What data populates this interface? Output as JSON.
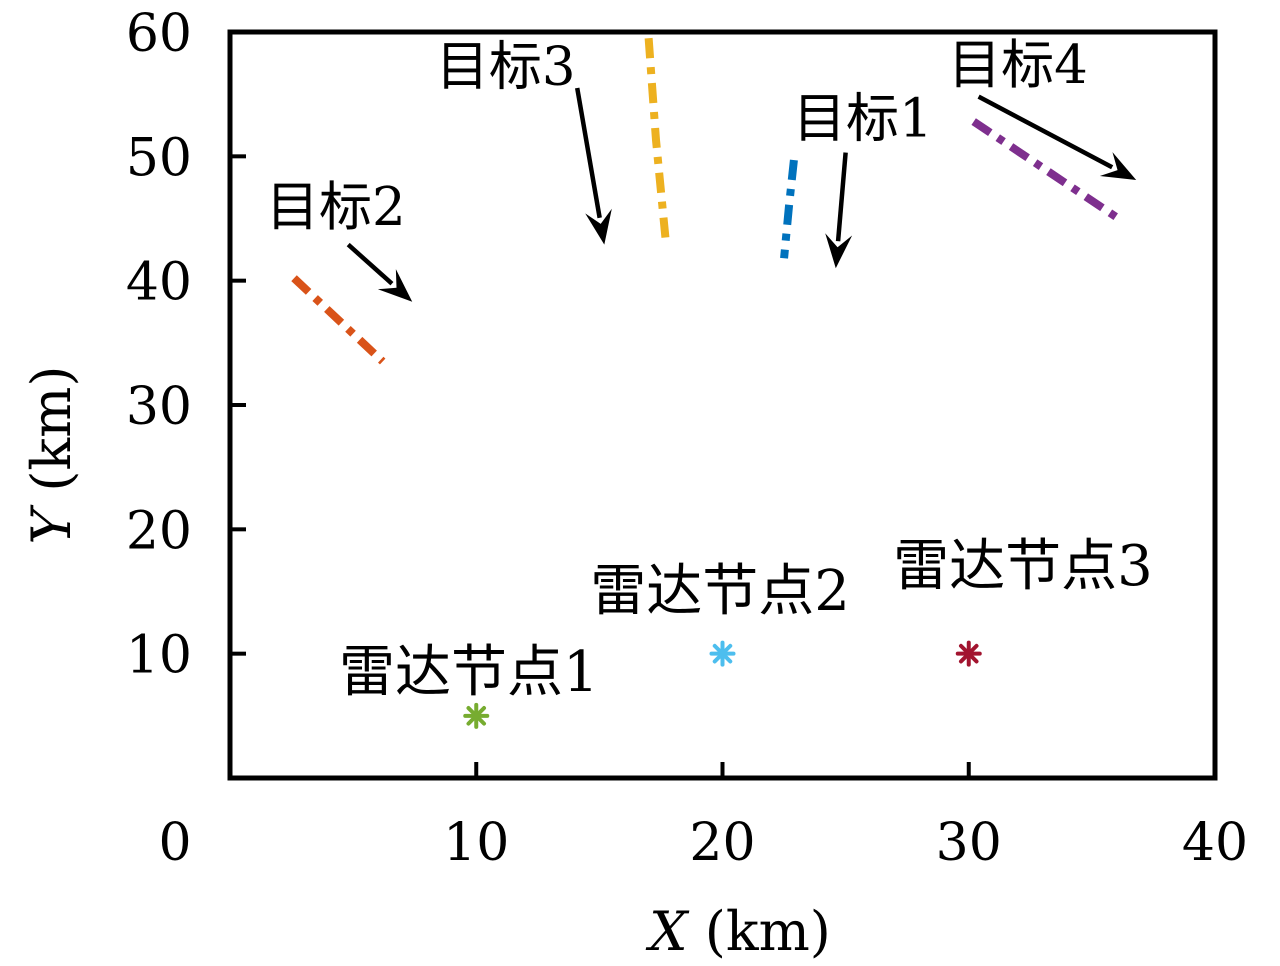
{
  "figure": {
    "background": "#ffffff",
    "axis_color": "#000000",
    "annotation_color": "#000000"
  },
  "chart_data": {
    "type": "scatter",
    "title": "",
    "xlabel_var": "X",
    "xlabel_unit": " (km)",
    "ylabel_var": "Y",
    "ylabel_unit": " (km)",
    "xlim": [
      0,
      40
    ],
    "ylim": [
      0,
      60
    ],
    "xticks": {
      "values": [
        0,
        10,
        20,
        30,
        40
      ],
      "labels": [
        "0",
        "10",
        "20",
        "30",
        "40"
      ]
    },
    "yticks": {
      "values": [
        10,
        20,
        30,
        40,
        50,
        60
      ],
      "labels": [
        "10",
        "20",
        "30",
        "40",
        "50",
        "60"
      ]
    },
    "grid": false,
    "legend": "none",
    "line_style": "dash-dot",
    "targets": [
      {
        "name": "target-1",
        "color": "#0072BD",
        "trajectory": [
          [
            22.9,
            49.7
          ],
          [
            22.7,
            46.0
          ],
          [
            22.5,
            41.8
          ]
        ],
        "label": {
          "text": "目标1",
          "x": 25.7,
          "y": 53.0
        },
        "arrow": {
          "x1": 25.0,
          "y1": 50.3,
          "x2": 24.6,
          "y2": 41.0
        }
      },
      {
        "name": "target-2",
        "color": "#D95319",
        "trajectory": [
          [
            2.6,
            40.2
          ],
          [
            6.2,
            33.5
          ]
        ],
        "label": {
          "text": "目标2",
          "x": 4.3,
          "y": 45.9
        },
        "arrow": {
          "x1": 4.8,
          "y1": 42.9,
          "x2": 7.4,
          "y2": 38.3
        }
      },
      {
        "name": "target-3",
        "color": "#EDB120",
        "trajectory": [
          [
            17.0,
            59.5
          ],
          [
            17.3,
            51.3
          ],
          [
            17.7,
            43.1
          ]
        ],
        "label": {
          "text": "目标3",
          "x": 11.2,
          "y": 57.2
        },
        "arrow": {
          "x1": 14.1,
          "y1": 55.5,
          "x2": 15.2,
          "y2": 42.9
        }
      },
      {
        "name": "target-4",
        "color": "#7E2F8E",
        "trajectory": [
          [
            30.2,
            52.8
          ],
          [
            36.0,
            45.1
          ]
        ],
        "label": {
          "text": "目标4",
          "x": 32.0,
          "y": 57.3
        },
        "arrow": {
          "x1": 30.4,
          "y1": 54.8,
          "x2": 36.8,
          "y2": 48.1
        }
      }
    ],
    "radar_nodes": [
      {
        "name": "radar-node-1",
        "marker": "asterisk",
        "color": "#77AC30",
        "x": 10,
        "y": 5,
        "label": {
          "text": "雷达节点1",
          "x": 9.7,
          "y": 8.5
        }
      },
      {
        "name": "radar-node-2",
        "marker": "asterisk",
        "color": "#4DBEEE",
        "x": 20,
        "y": 10,
        "label": {
          "text": "雷达节点2",
          "x": 19.9,
          "y": 15.0
        }
      },
      {
        "name": "radar-node-3",
        "marker": "asterisk",
        "color": "#A2142F",
        "x": 30,
        "y": 10,
        "label": {
          "text": "雷达节点3",
          "x": 32.2,
          "y": 17.0
        }
      }
    ]
  }
}
